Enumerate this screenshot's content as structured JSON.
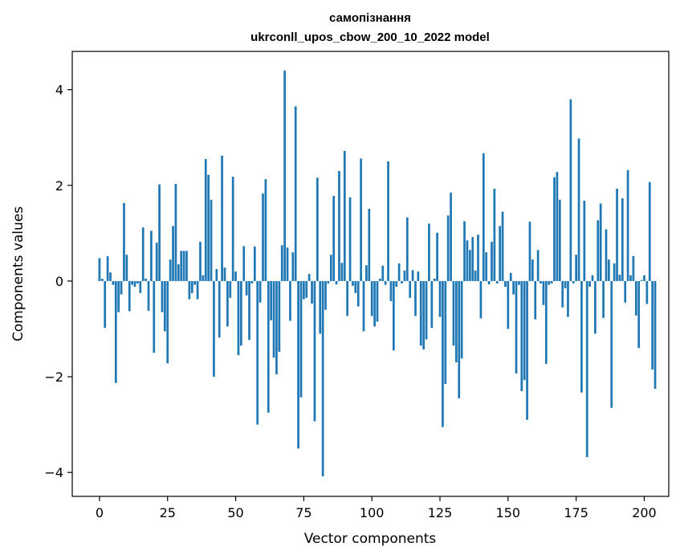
{
  "chart_data": {
    "type": "bar",
    "title": "самопізнання",
    "subtitle": "ukrconll_upos_cbow_200_10_2022 model",
    "xlabel": "Vector components",
    "ylabel": "Components values",
    "xlim": [
      -10,
      209
    ],
    "ylim": [
      -4.5,
      4.8
    ],
    "xticks": [
      0,
      25,
      50,
      75,
      100,
      125,
      150,
      175,
      200
    ],
    "yticks": [
      -4,
      -2,
      0,
      2,
      4
    ],
    "xtick_labels": [
      "0",
      "25",
      "50",
      "75",
      "100",
      "125",
      "150",
      "175",
      "200"
    ],
    "ytick_labels": [
      "−4",
      "−2",
      "0",
      "2",
      "4"
    ],
    "bar_color": "#1f77b4",
    "grid": false,
    "values": [
      0.48,
      0.05,
      -0.98,
      0.52,
      0.18,
      -0.08,
      -2.13,
      -0.65,
      -0.28,
      1.63,
      0.55,
      -0.63,
      -0.08,
      -0.12,
      -0.05,
      -0.25,
      1.12,
      0.05,
      -0.62,
      1.05,
      -1.5,
      0.8,
      2.02,
      -0.65,
      -1.05,
      -1.72,
      0.45,
      1.15,
      2.03,
      0.35,
      0.63,
      0.63,
      0.63,
      -0.38,
      -0.25,
      -0.08,
      -0.38,
      0.82,
      0.12,
      2.55,
      2.22,
      1.7,
      -2.0,
      0.25,
      -1.18,
      2.62,
      0.28,
      -0.95,
      -0.35,
      2.18,
      0.2,
      -1.55,
      -1.35,
      0.73,
      -0.3,
      -1.23,
      -0.05,
      0.72,
      -3.0,
      -0.45,
      1.83,
      2.13,
      -2.75,
      -0.82,
      -1.6,
      -1.95,
      -1.48,
      0.75,
      4.4,
      0.7,
      -0.83,
      0.6,
      3.65,
      -3.5,
      -2.43,
      -0.38,
      -0.35,
      0.15,
      -0.47,
      -2.93,
      2.16,
      -1.1,
      -4.08,
      -0.6,
      -0.05,
      0.55,
      1.78,
      -0.07,
      2.3,
      0.38,
      2.72,
      -0.73,
      1.75,
      -0.1,
      -0.25,
      -0.53,
      2.56,
      -1.05,
      0.33,
      1.51,
      -0.73,
      -0.95,
      -0.85,
      0.05,
      0.32,
      -0.08,
      2.5,
      -0.42,
      -1.45,
      -0.12,
      0.37,
      -0.05,
      0.22,
      1.33,
      -0.35,
      0.23,
      -0.73,
      0.2,
      -1.35,
      -1.43,
      -1.22,
      1.2,
      -0.98,
      0.05,
      1.01,
      -0.75,
      -3.05,
      -2.15,
      1.37,
      1.85,
      -1.35,
      -1.7,
      -2.45,
      -1.62,
      1.25,
      0.85,
      0.65,
      0.92,
      0.22,
      0.97,
      -0.78,
      2.67,
      0.6,
      -0.07,
      0.82,
      1.93,
      -0.05,
      1.15,
      1.45,
      -0.12,
      -1.0,
      0.17,
      -0.28,
      -1.93,
      -0.08,
      -2.3,
      -2.07,
      -2.9,
      1.24,
      0.45,
      -0.8,
      0.65,
      -0.05,
      -0.5,
      -1.73,
      -0.08,
      -0.05,
      2.17,
      2.28,
      1.7,
      -0.55,
      -0.15,
      -0.75,
      3.8,
      -0.05,
      0.55,
      2.98,
      -2.33,
      1.68,
      -3.68,
      -0.12,
      0.12,
      -1.1,
      1.27,
      1.62,
      -0.77,
      1.08,
      0.45,
      -2.65,
      0.37,
      1.93,
      0.13,
      1.73,
      -0.45,
      2.32,
      0.12,
      0.52,
      -0.72,
      -1.4,
      0.02,
      0.12,
      -0.48,
      2.07,
      -1.85,
      -2.25
    ]
  }
}
